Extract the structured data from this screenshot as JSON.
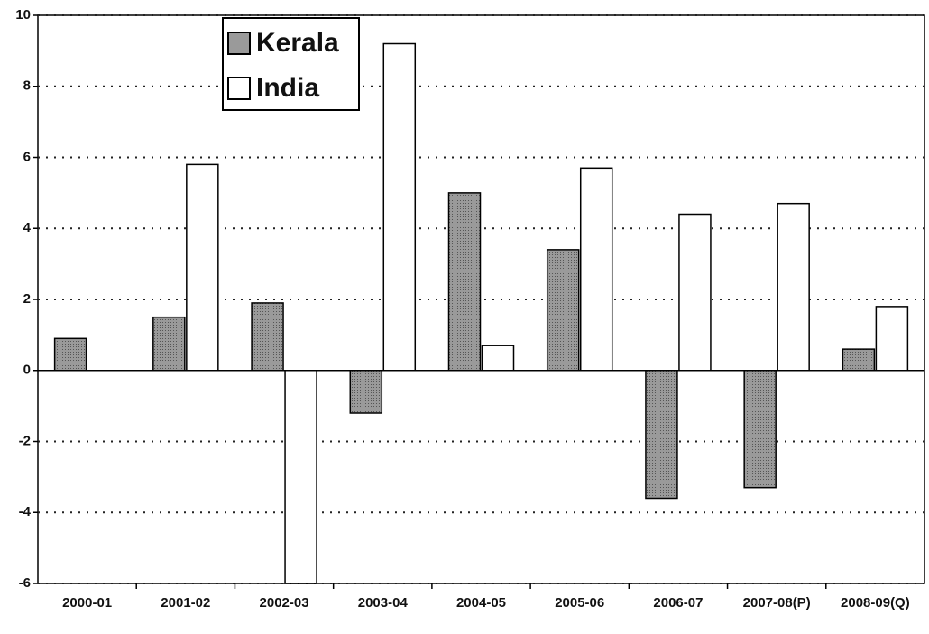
{
  "chart_data": {
    "type": "bar",
    "categories": [
      "2000-01",
      "2001-02",
      "2002-03",
      "2003-04",
      "2004-05",
      "2005-06",
      "2006-07",
      "2007-08(P)",
      "2008-09(Q)"
    ],
    "series": [
      {
        "name": "Kerala",
        "color": "#9a9a9a",
        "values": [
          0.9,
          1.5,
          1.9,
          -1.2,
          5.0,
          3.4,
          -3.6,
          -3.3,
          0.6
        ]
      },
      {
        "name": "India",
        "color": "#ffffff",
        "values": [
          0,
          5.8,
          -6.0,
          9.2,
          0.7,
          5.7,
          4.4,
          4.7,
          1.8
        ]
      }
    ],
    "ylim": [
      -6,
      10
    ],
    "yticks": [
      -6,
      -4,
      -2,
      0,
      2,
      4,
      6,
      8,
      10
    ],
    "grid": true
  }
}
